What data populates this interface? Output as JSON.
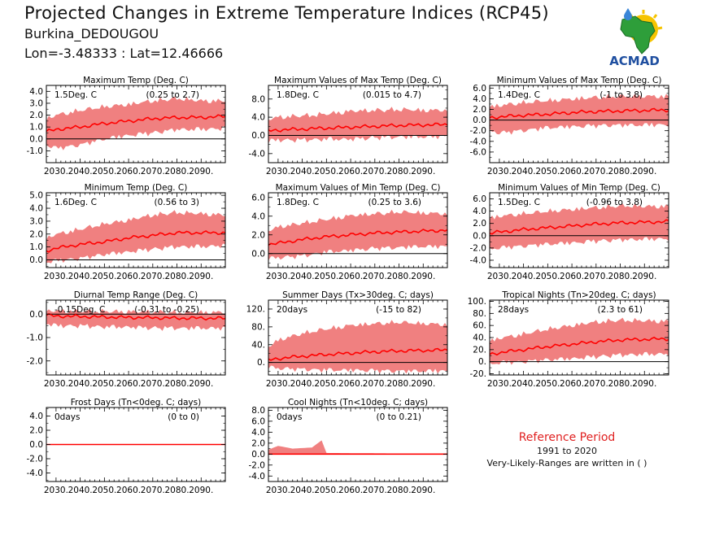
{
  "header": {
    "title": "Projected Changes in Extreme Temperature Indices (RCP45)",
    "location": "Burkina_DEDOUGOU",
    "coords": "Lon=-3.48333 : Lat=12.46666",
    "logo_text": "ACMAD"
  },
  "reference": {
    "title": "Reference Period",
    "period": "1991 to 2020",
    "note": "Very-Likely-Ranges are written in ( )"
  },
  "colors": {
    "band": "#f08080",
    "line": "#ff0000",
    "zero": "#000000"
  },
  "chart_data": [
    {
      "type": "area",
      "title": "Maximum Temp (Deg. C)",
      "summary": "1.5Deg. C",
      "range": "(0.25 to 2.7)",
      "ylim": [
        -2.0,
        4.5
      ],
      "yticks": [
        -1.0,
        0.0,
        1.0,
        2.0,
        3.0,
        4.0
      ],
      "yticklabels": [
        "-1.0",
        "0.0",
        "1.0",
        "2.0",
        "3.0",
        "4.0"
      ],
      "xticklabels": [
        "2030.",
        "2040.",
        "2050.",
        "2060.",
        "2070.",
        "2080.",
        "2090."
      ],
      "median": {
        "x": [
          2026,
          2030,
          2040,
          2050,
          2060,
          2070,
          2080,
          2090,
          2100
        ],
        "y": [
          0.6,
          0.8,
          1.0,
          1.3,
          1.5,
          1.7,
          1.8,
          1.8,
          1.9
        ]
      },
      "low": {
        "x": [
          2026,
          2030,
          2040,
          2050,
          2060,
          2070,
          2080,
          2090,
          2100
        ],
        "y": [
          -0.3,
          -0.6,
          -0.3,
          0.2,
          0.5,
          0.7,
          1.0,
          1.0,
          1.1
        ]
      },
      "high": {
        "x": [
          2026,
          2030,
          2040,
          2050,
          2060,
          2070,
          2080,
          2090,
          2100
        ],
        "y": [
          1.5,
          1.8,
          2.2,
          2.5,
          2.7,
          3.0,
          3.2,
          3.0,
          3.0
        ]
      }
    },
    {
      "type": "area",
      "title": "Maximum Values of Max Temp (Deg. C)",
      "summary": "1.8Deg. C",
      "range": "(0.015 to 4.7)",
      "ylim": [
        -6.0,
        11.0
      ],
      "yticks": [
        -4.0,
        0.0,
        4.0,
        8.0
      ],
      "yticklabels": [
        "-4.0",
        "0.0",
        "4.0",
        "8.0"
      ],
      "xticklabels": [
        "2030.",
        "2040.",
        "2050.",
        "2060.",
        "2070.",
        "2080.",
        "2090."
      ],
      "median": {
        "x": [
          2026,
          2030,
          2040,
          2050,
          2060,
          2070,
          2080,
          2090,
          2100
        ],
        "y": [
          1.0,
          1.2,
          1.4,
          1.6,
          1.8,
          2.0,
          2.2,
          2.3,
          2.4
        ]
      },
      "low": {
        "x": [
          2026,
          2030,
          2040,
          2050,
          2060,
          2070,
          2080,
          2090,
          2100
        ],
        "y": [
          -0.8,
          -0.5,
          -0.5,
          -0.3,
          -0.3,
          0.0,
          0.2,
          0.2,
          0.3
        ]
      },
      "high": {
        "x": [
          2026,
          2030,
          2040,
          2050,
          2060,
          2070,
          2080,
          2090,
          2100
        ],
        "y": [
          3.0,
          3.5,
          3.8,
          4.2,
          4.8,
          5.0,
          5.2,
          5.0,
          5.0
        ]
      }
    },
    {
      "type": "area",
      "title": "Minimum Values of Max Temp (Deg. C)",
      "summary": "1.4Deg. C",
      "range": "(-1 to 3.8)",
      "ylim": [
        -8.0,
        6.5
      ],
      "yticks": [
        -6.0,
        -4.0,
        -2.0,
        0.0,
        2.0,
        4.0,
        6.0
      ],
      "yticklabels": [
        "-6.0",
        "-4.0",
        "-2.0",
        "0.0",
        "2.0",
        "4.0",
        "6.0"
      ],
      "xticklabels": [
        "2030.",
        "2040.",
        "2050.",
        "2060.",
        "2070.",
        "2080.",
        "2090."
      ],
      "median": {
        "x": [
          2026,
          2030,
          2040,
          2050,
          2060,
          2070,
          2080,
          2090,
          2100
        ],
        "y": [
          0.4,
          0.6,
          0.9,
          1.1,
          1.4,
          1.6,
          1.7,
          1.8,
          1.9
        ]
      },
      "low": {
        "x": [
          2026,
          2030,
          2040,
          2050,
          2060,
          2070,
          2080,
          2090,
          2100
        ],
        "y": [
          -1.5,
          -2.0,
          -1.5,
          -1.0,
          -0.8,
          -0.6,
          -0.5,
          -0.5,
          -0.4
        ]
      },
      "high": {
        "x": [
          2026,
          2030,
          2040,
          2050,
          2060,
          2070,
          2080,
          2090,
          2100
        ],
        "y": [
          2.0,
          2.3,
          2.8,
          3.2,
          3.5,
          3.8,
          4.0,
          4.0,
          4.0
        ]
      }
    },
    {
      "type": "area",
      "title": "Minimum Temp (Deg. C)",
      "summary": "1.6Deg. C",
      "range": "(0.56 to 3)",
      "ylim": [
        -0.6,
        5.2
      ],
      "yticks": [
        0.0,
        1.0,
        2.0,
        3.0,
        4.0,
        5.0
      ],
      "yticklabels": [
        "0.0",
        "1.0",
        "2.0",
        "3.0",
        "4.0",
        "5.0"
      ],
      "xticklabels": [
        "2030.",
        "2040.",
        "2050.",
        "2060.",
        "2070.",
        "2080.",
        "2090."
      ],
      "median": {
        "x": [
          2026,
          2030,
          2040,
          2050,
          2060,
          2070,
          2080,
          2090,
          2100
        ],
        "y": [
          0.7,
          0.9,
          1.2,
          1.4,
          1.7,
          1.9,
          2.1,
          2.1,
          2.1
        ]
      },
      "low": {
        "x": [
          2026,
          2030,
          2040,
          2050,
          2060,
          2070,
          2080,
          2090,
          2100
        ],
        "y": [
          0.0,
          0.1,
          0.3,
          0.6,
          0.8,
          1.0,
          1.2,
          1.2,
          1.3
        ]
      },
      "high": {
        "x": [
          2026,
          2030,
          2040,
          2050,
          2060,
          2070,
          2080,
          2090,
          2100
        ],
        "y": [
          1.5,
          1.8,
          2.2,
          2.6,
          2.9,
          3.3,
          3.5,
          3.4,
          3.3
        ]
      }
    },
    {
      "type": "area",
      "title": "Maximum Values of Min Temp (Deg. C)",
      "summary": "1.8Deg. C",
      "range": "(0.25 to 3.6)",
      "ylim": [
        -1.5,
        6.5
      ],
      "yticks": [
        0.0,
        2.0,
        4.0,
        6.0
      ],
      "yticklabels": [
        "0.0",
        "2.0",
        "4.0",
        "6.0"
      ],
      "xticklabels": [
        "2030.",
        "2040.",
        "2050.",
        "2060.",
        "2070.",
        "2080.",
        "2090."
      ],
      "median": {
        "x": [
          2026,
          2030,
          2040,
          2050,
          2060,
          2070,
          2080,
          2090,
          2100
        ],
        "y": [
          1.0,
          1.1,
          1.5,
          1.8,
          2.0,
          2.2,
          2.3,
          2.4,
          2.5
        ]
      },
      "low": {
        "x": [
          2026,
          2030,
          2040,
          2050,
          2060,
          2070,
          2080,
          2090,
          2100
        ],
        "y": [
          -0.3,
          -0.2,
          0.0,
          0.4,
          0.6,
          0.8,
          0.9,
          1.0,
          1.0
        ]
      },
      "high": {
        "x": [
          2026,
          2030,
          2040,
          2050,
          2060,
          2070,
          2080,
          2090,
          2100
        ],
        "y": [
          2.2,
          2.6,
          3.0,
          3.4,
          3.8,
          4.0,
          4.2,
          4.1,
          4.0
        ]
      }
    },
    {
      "type": "area",
      "title": "Minimum Values of Min Temp (Deg. C)",
      "summary": "1.5Deg. C",
      "range": "(-0.96 to 3.8)",
      "ylim": [
        -5.2,
        7.0
      ],
      "yticks": [
        -4.0,
        -2.0,
        0.0,
        2.0,
        4.0,
        6.0
      ],
      "yticklabels": [
        "-4.0",
        "-2.0",
        "0.0",
        "2.0",
        "4.0",
        "6.0"
      ],
      "xticklabels": [
        "2030.",
        "2040.",
        "2050.",
        "2060.",
        "2070.",
        "2080.",
        "2090."
      ],
      "median": {
        "x": [
          2026,
          2030,
          2040,
          2050,
          2060,
          2070,
          2080,
          2090,
          2100
        ],
        "y": [
          0.4,
          0.6,
          1.0,
          1.3,
          1.6,
          1.9,
          2.1,
          2.2,
          2.3
        ]
      },
      "low": {
        "x": [
          2026,
          2030,
          2040,
          2050,
          2060,
          2070,
          2080,
          2090,
          2100
        ],
        "y": [
          -1.8,
          -1.6,
          -1.3,
          -1.0,
          -0.8,
          -0.5,
          -0.3,
          -0.2,
          -0.1
        ]
      },
      "high": {
        "x": [
          2026,
          2030,
          2040,
          2050,
          2060,
          2070,
          2080,
          2090,
          2100
        ],
        "y": [
          2.5,
          2.8,
          3.2,
          3.6,
          3.9,
          4.2,
          4.5,
          4.4,
          4.4
        ]
      }
    },
    {
      "type": "area",
      "title": "Diurnal Temp Range (Deg. C)",
      "summary": "-0.15Deg. C",
      "range": "(-0.31 to -0.25)",
      "ylim": [
        -2.6,
        0.6
      ],
      "yticks": [
        -2.0,
        -1.0,
        0.0
      ],
      "yticklabels": [
        "-2.0",
        "-1.0",
        "0.0"
      ],
      "xticklabels": [
        "2030.",
        "2040.",
        "2050.",
        "2060.",
        "2070.",
        "2080.",
        "2090."
      ],
      "median": {
        "x": [
          2026,
          2030,
          2040,
          2050,
          2060,
          2070,
          2080,
          2090,
          2100
        ],
        "y": [
          -0.05,
          -0.08,
          -0.1,
          -0.12,
          -0.14,
          -0.15,
          -0.17,
          -0.17,
          -0.18
        ]
      },
      "low": {
        "x": [
          2026,
          2030,
          2040,
          2050,
          2060,
          2070,
          2080,
          2090,
          2100
        ],
        "y": [
          -0.3,
          -0.4,
          -0.4,
          -0.45,
          -0.45,
          -0.5,
          -0.5,
          -0.5,
          -0.5
        ]
      },
      "high": {
        "x": [
          2026,
          2030,
          2040,
          2050,
          2060,
          2070,
          2080,
          2090,
          2100
        ],
        "y": [
          0.05,
          0.04,
          0.03,
          0.02,
          0.01,
          0.0,
          -0.02,
          -0.02,
          -0.02
        ]
      }
    },
    {
      "type": "area",
      "title": "Summer Days (Tx>30deg. C; days)",
      "summary": "20days",
      "range": "(-15 to 82)",
      "ylim": [
        -28,
        140
      ],
      "yticks": [
        0,
        40,
        80,
        120
      ],
      "yticklabels": [
        "0.",
        "40.",
        "80.",
        "120."
      ],
      "xticklabels": [
        "2030.",
        "2040.",
        "2050.",
        "2060.",
        "2070.",
        "2080.",
        "2090."
      ],
      "median": {
        "x": [
          2026,
          2030,
          2040,
          2050,
          2060,
          2070,
          2080,
          2090,
          2100
        ],
        "y": [
          5,
          9,
          14,
          18,
          21,
          24,
          26,
          27,
          28
        ]
      },
      "low": {
        "x": [
          2026,
          2030,
          2040,
          2050,
          2060,
          2070,
          2080,
          2090,
          2100
        ],
        "y": [
          -5,
          -8,
          -10,
          -12,
          -12,
          -13,
          -14,
          -14,
          -14
        ]
      },
      "high": {
        "x": [
          2026,
          2030,
          2040,
          2050,
          2060,
          2070,
          2080,
          2090,
          2100
        ],
        "y": [
          30,
          45,
          60,
          70,
          78,
          82,
          85,
          82,
          80
        ]
      }
    },
    {
      "type": "area",
      "title": "Tropical Nights (Tn>20deg. C; days)",
      "summary": "28days",
      "range": "(2.3 to 61)",
      "ylim": [
        -22,
        102
      ],
      "yticks": [
        -20,
        0,
        20,
        40,
        60,
        80,
        100
      ],
      "yticklabels": [
        "-20.",
        "0.",
        "20.",
        "40.",
        "60.",
        "80.",
        "100."
      ],
      "xticklabels": [
        "2030.",
        "2040.",
        "2050.",
        "2060.",
        "2070.",
        "2080.",
        "2090."
      ],
      "median": {
        "x": [
          2026,
          2030,
          2040,
          2050,
          2060,
          2070,
          2080,
          2090,
          2100
        ],
        "y": [
          12,
          15,
          20,
          25,
          29,
          33,
          36,
          37,
          38
        ]
      },
      "low": {
        "x": [
          2026,
          2030,
          2040,
          2050,
          2060,
          2070,
          2080,
          2090,
          2100
        ],
        "y": [
          0,
          2,
          4,
          7,
          9,
          12,
          15,
          16,
          17
        ]
      },
      "high": {
        "x": [
          2026,
          2030,
          2040,
          2050,
          2060,
          2070,
          2080,
          2090,
          2100
        ],
        "y": [
          30,
          35,
          42,
          50,
          56,
          62,
          65,
          64,
          63
        ]
      }
    },
    {
      "type": "area",
      "title": "Frost Days (Tn<0deg. C; days)",
      "summary": "0days",
      "range": "(0 to 0)",
      "ylim": [
        -5.2,
        5.2
      ],
      "yticks": [
        -4.0,
        -2.0,
        0.0,
        2.0,
        4.0
      ],
      "yticklabels": [
        "-4.0",
        "-2.0",
        "0.0",
        "2.0",
        "4.0"
      ],
      "xticklabels": [
        "2030.",
        "2040.",
        "2050.",
        "2060.",
        "2070.",
        "2080.",
        "2090."
      ],
      "median": {
        "x": [
          2026,
          2100
        ],
        "y": [
          0,
          0
        ]
      },
      "low": {
        "x": [
          2026,
          2100
        ],
        "y": [
          0,
          0
        ]
      },
      "high": {
        "x": [
          2026,
          2100
        ],
        "y": [
          0,
          0
        ]
      }
    },
    {
      "type": "area",
      "title": "Cool Nights (Tn<10deg. C; days)",
      "summary": "0days",
      "range": "(0 to 0.21)",
      "ylim": [
        -5.0,
        8.5
      ],
      "yticks": [
        -4.0,
        -2.0,
        0.0,
        2.0,
        4.0,
        6.0,
        8.0
      ],
      "yticklabels": [
        "-4.0",
        "-2.0",
        "0.0",
        "2.0",
        "4.0",
        "6.0",
        "8.0"
      ],
      "xticklabels": [
        "2030.",
        "2040.",
        "2050.",
        "2060.",
        "2070.",
        "2080.",
        "2090."
      ],
      "median": {
        "x": [
          2026,
          2100
        ],
        "y": [
          0,
          0
        ]
      },
      "low": {
        "x": [
          2026,
          2100
        ],
        "y": [
          0,
          0
        ]
      },
      "high": {
        "x": [
          2026,
          2030,
          2036,
          2044,
          2048,
          2050,
          2100
        ],
        "y": [
          0.8,
          1.5,
          1.0,
          1.2,
          2.5,
          0.2,
          0.05
        ]
      }
    }
  ]
}
